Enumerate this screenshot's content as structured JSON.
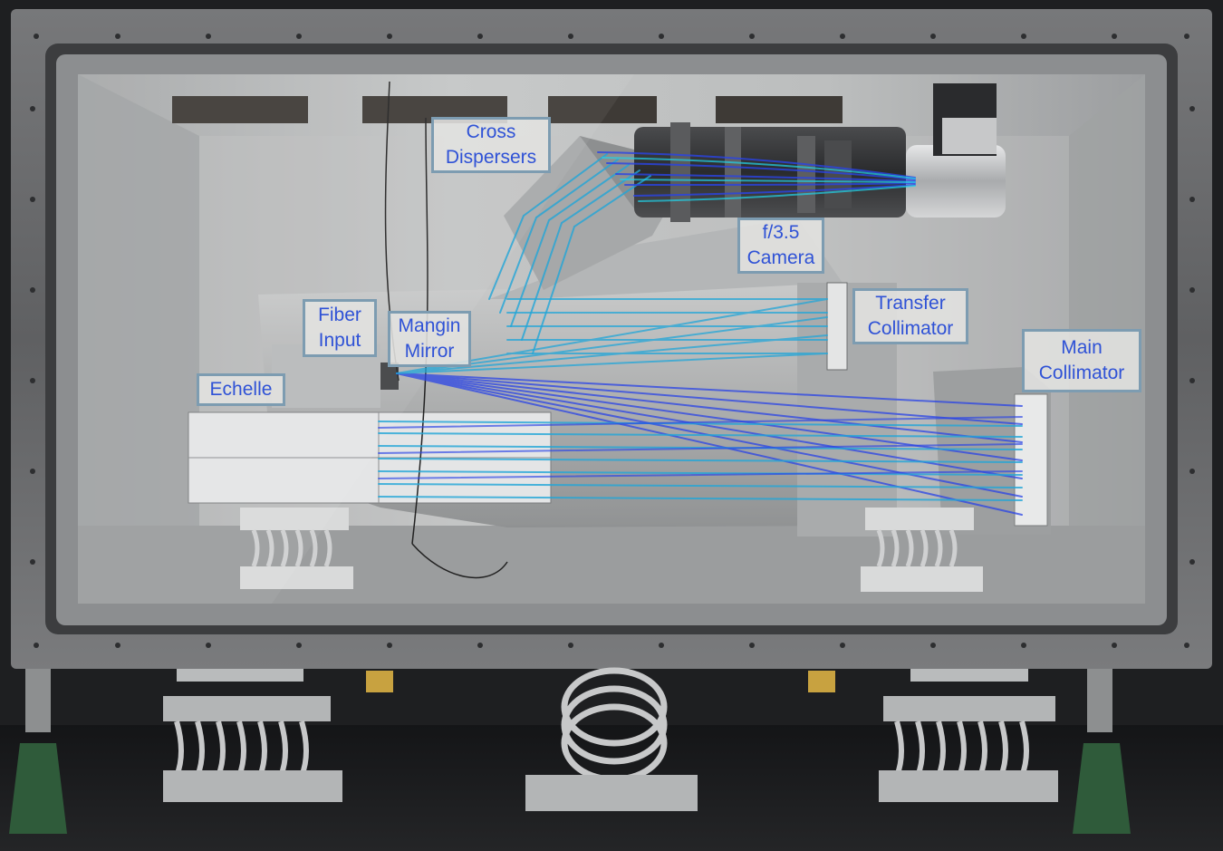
{
  "labels": {
    "cross_dispersers": [
      "Cross",
      "Dispersers"
    ],
    "camera": [
      "f/3.5",
      "Camera"
    ],
    "transfer_collimator": [
      "Transfer",
      "Collimator"
    ],
    "fiber_input": [
      "Fiber",
      "Input"
    ],
    "mangin_mirror": [
      "Mangin",
      "Mirror"
    ],
    "main_collimator": [
      "Main",
      "Collimator"
    ],
    "echelle": [
      "Echelle"
    ]
  },
  "colors": {
    "label_text": "#2f52d6",
    "label_border": "#7d9cb1",
    "label_fill": "#e2e2e0",
    "ray_blue": "#2a44e6",
    "ray_cyan": "#22a6d8",
    "enclosure_frame": "#6b6c6e",
    "enclosure_interior": "#b9bbbc",
    "floor": "#161719",
    "jack_green": "#2f5b3a"
  }
}
